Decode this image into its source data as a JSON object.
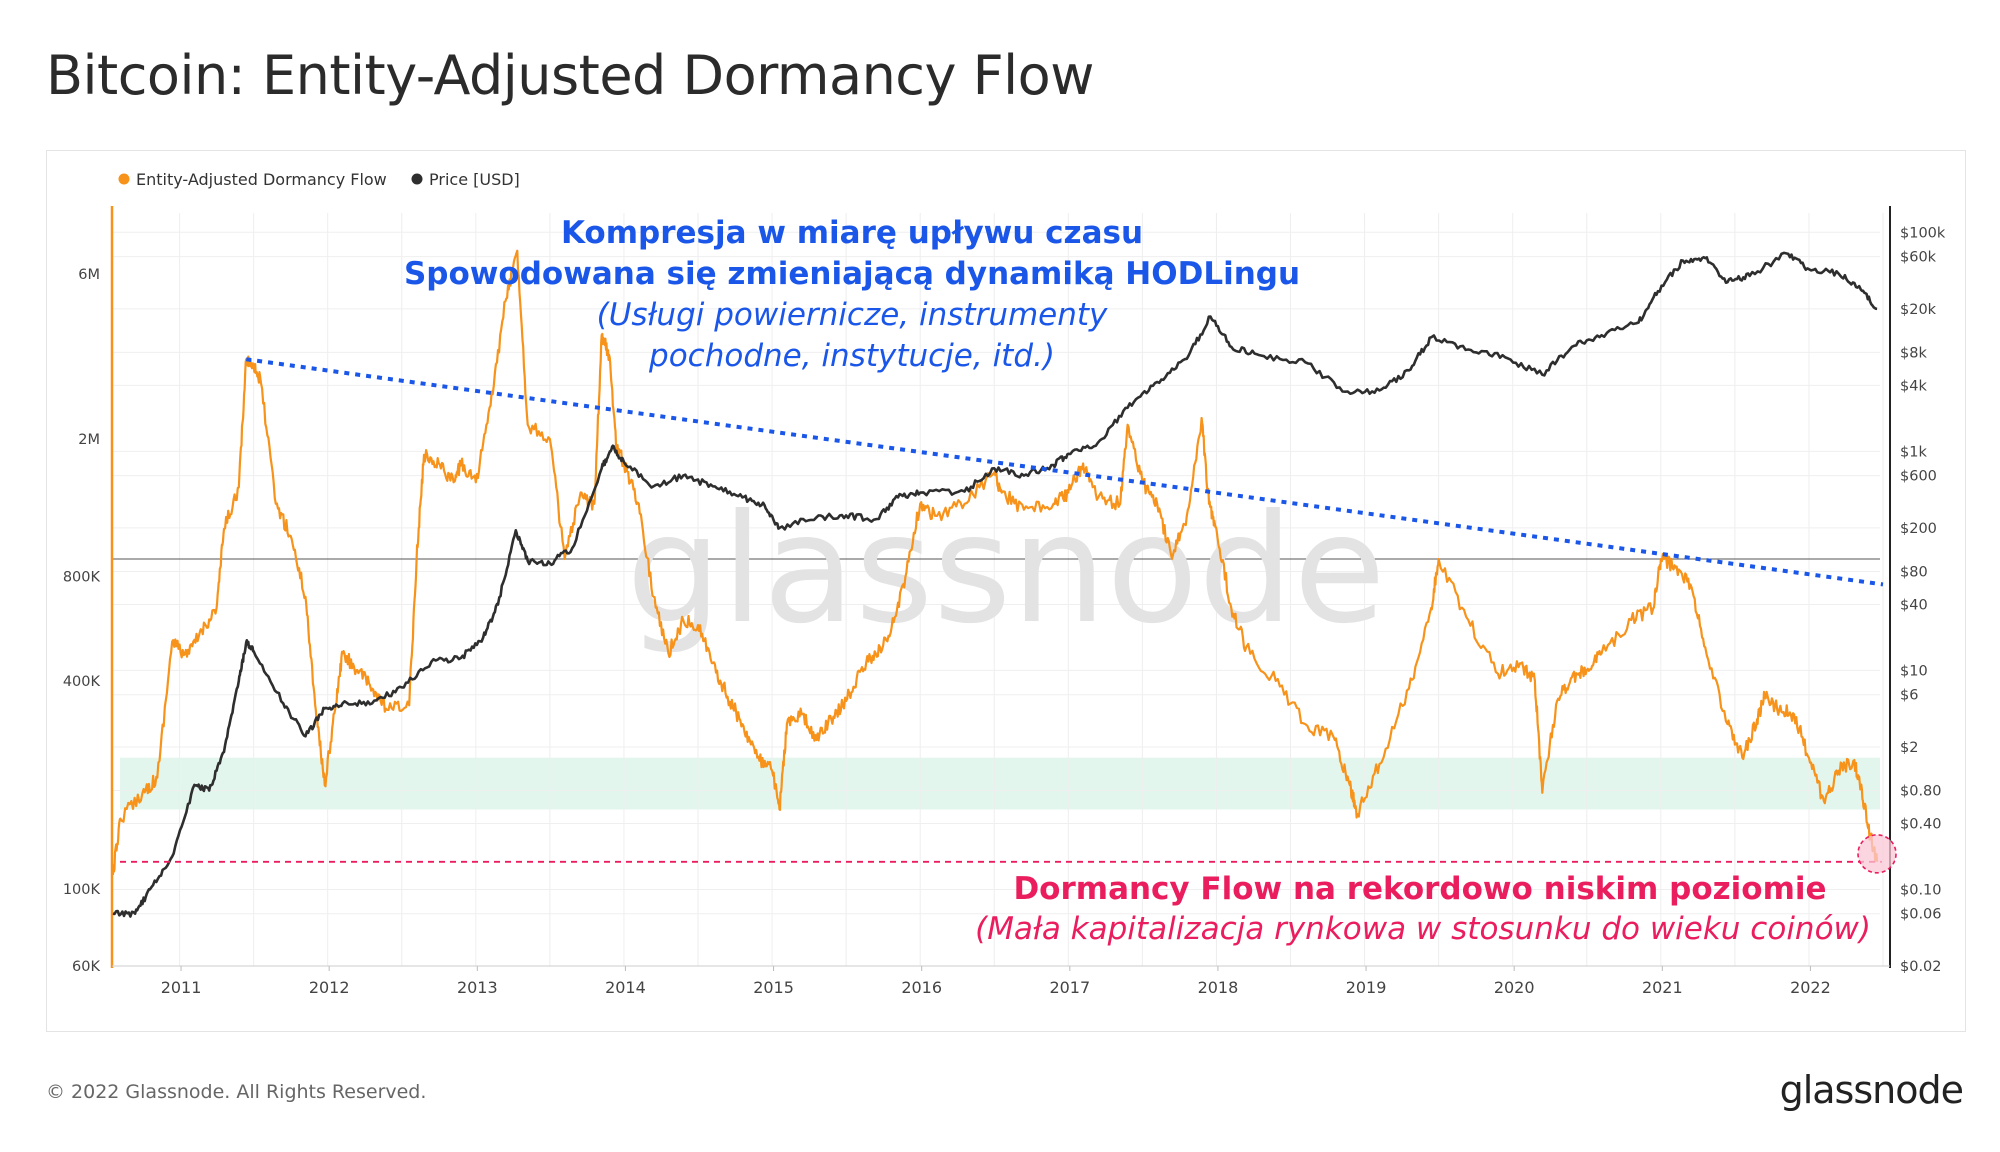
{
  "header": {
    "title": "Bitcoin: Entity-Adjusted Dormancy Flow"
  },
  "footer": {
    "copyright": "© 2022 Glassnode. All Rights Reserved.",
    "logo": "glassnode"
  },
  "watermark": "glassnode",
  "colors": {
    "flow": "#f7931a",
    "price": "#2e2e2e",
    "trend": "#1a56e8",
    "record_low": "#ea1d5e",
    "band": "#d9f3e8"
  },
  "chart_data": {
    "type": "line",
    "x_scale": "time",
    "y_scale_left": "log",
    "y_scale_right": "log",
    "x_ticks": [
      "2011",
      "2012",
      "2013",
      "2014",
      "2015",
      "2016",
      "2017",
      "2018",
      "2019",
      "2020",
      "2021",
      "2022"
    ],
    "xlim": [
      "2010-07-17",
      "2022-06-24"
    ],
    "left_axis": {
      "ticks": [
        {
          "value": 60000,
          "label": "60K"
        },
        {
          "value": 100000,
          "label": "100K"
        },
        {
          "value": 400000,
          "label": "400K"
        },
        {
          "value": 800000,
          "label": "800K"
        },
        {
          "value": 2000000,
          "label": "2M"
        },
        {
          "value": 6000000,
          "label": "6M"
        }
      ],
      "ylim": [
        60000,
        9000000
      ]
    },
    "right_axis": {
      "ticks": [
        {
          "value": 0.02,
          "label": "$0.02"
        },
        {
          "value": 0.06,
          "label": "$0.06"
        },
        {
          "value": 0.1,
          "label": "$0.10"
        },
        {
          "value": 0.4,
          "label": "$0.40"
        },
        {
          "value": 0.8,
          "label": "$0.80"
        },
        {
          "value": 2,
          "label": "$2"
        },
        {
          "value": 6,
          "label": "$6"
        },
        {
          "value": 10,
          "label": "$10"
        },
        {
          "value": 40,
          "label": "$40"
        },
        {
          "value": 80,
          "label": "$80"
        },
        {
          "value": 200,
          "label": "$200"
        },
        {
          "value": 600,
          "label": "$600"
        },
        {
          "value": 1000,
          "label": "$1k"
        },
        {
          "value": 4000,
          "label": "$4k"
        },
        {
          "value": 8000,
          "label": "$8k"
        },
        {
          "value": 20000,
          "label": "$20k"
        },
        {
          "value": 60000,
          "label": "$60k"
        },
        {
          "value": 100000,
          "label": "$100k"
        }
      ],
      "ylim": [
        0.02,
        150000
      ]
    },
    "legend": [
      {
        "name": "Entity-Adjusted Dormancy Flow",
        "color": "#f7931a"
      },
      {
        "name": "Price [USD]",
        "color": "#2e2e2e"
      }
    ],
    "legend_position": "top-left",
    "grid": true,
    "series": [
      {
        "name": "Entity-Adjusted Dormancy Flow",
        "axis": "left",
        "points": [
          [
            2010.55,
            110000
          ],
          [
            2010.6,
            160000
          ],
          [
            2010.75,
            190000
          ],
          [
            2010.85,
            210000
          ],
          [
            2010.95,
            520000
          ],
          [
            2011.05,
            470000
          ],
          [
            2011.15,
            560000
          ],
          [
            2011.25,
            650000
          ],
          [
            2011.3,
            1100000
          ],
          [
            2011.4,
            1450000
          ],
          [
            2011.45,
            3400000
          ],
          [
            2011.5,
            3300000
          ],
          [
            2011.55,
            2900000
          ],
          [
            2011.65,
            1300000
          ],
          [
            2011.75,
            1050000
          ],
          [
            2011.85,
            700000
          ],
          [
            2011.92,
            330000
          ],
          [
            2011.98,
            200000
          ],
          [
            2012.05,
            330000
          ],
          [
            2012.1,
            480000
          ],
          [
            2012.2,
            430000
          ],
          [
            2012.3,
            380000
          ],
          [
            2012.4,
            330000
          ],
          [
            2012.55,
            340000
          ],
          [
            2012.6,
            900000
          ],
          [
            2012.65,
            1800000
          ],
          [
            2012.75,
            1700000
          ],
          [
            2012.85,
            1500000
          ],
          [
            2012.9,
            1700000
          ],
          [
            2013.0,
            1500000
          ],
          [
            2013.1,
            2500000
          ],
          [
            2013.2,
            5000000
          ],
          [
            2013.28,
            7000000
          ],
          [
            2013.35,
            2200000
          ],
          [
            2013.5,
            2000000
          ],
          [
            2013.6,
            900000
          ],
          [
            2013.7,
            1350000
          ],
          [
            2013.8,
            1300000
          ],
          [
            2013.85,
            4000000
          ],
          [
            2013.9,
            3500000
          ],
          [
            2013.95,
            1900000
          ],
          [
            2014.0,
            1700000
          ],
          [
            2014.1,
            1300000
          ],
          [
            2014.2,
            700000
          ],
          [
            2014.3,
            480000
          ],
          [
            2014.4,
            600000
          ],
          [
            2014.5,
            580000
          ],
          [
            2014.6,
            450000
          ],
          [
            2014.7,
            360000
          ],
          [
            2014.8,
            300000
          ],
          [
            2014.9,
            240000
          ],
          [
            2015.0,
            220000
          ],
          [
            2015.05,
            170000
          ],
          [
            2015.1,
            300000
          ],
          [
            2015.2,
            320000
          ],
          [
            2015.3,
            270000
          ],
          [
            2015.4,
            310000
          ],
          [
            2015.5,
            350000
          ],
          [
            2015.6,
            430000
          ],
          [
            2015.7,
            480000
          ],
          [
            2015.8,
            550000
          ],
          [
            2015.9,
            800000
          ],
          [
            2016.0,
            1300000
          ],
          [
            2016.1,
            1200000
          ],
          [
            2016.3,
            1300000
          ],
          [
            2016.5,
            1600000
          ],
          [
            2016.55,
            1400000
          ],
          [
            2016.7,
            1250000
          ],
          [
            2016.9,
            1300000
          ],
          [
            2017.0,
            1400000
          ],
          [
            2017.1,
            1700000
          ],
          [
            2017.2,
            1350000
          ],
          [
            2017.35,
            1300000
          ],
          [
            2017.4,
            2200000
          ],
          [
            2017.5,
            1500000
          ],
          [
            2017.6,
            1300000
          ],
          [
            2017.7,
            900000
          ],
          [
            2017.8,
            1200000
          ],
          [
            2017.9,
            2300000
          ],
          [
            2017.95,
            1300000
          ],
          [
            2018.0,
            1100000
          ],
          [
            2018.1,
            650000
          ],
          [
            2018.2,
            500000
          ],
          [
            2018.4,
            400000
          ],
          [
            2018.6,
            300000
          ],
          [
            2018.8,
            270000
          ],
          [
            2018.9,
            200000
          ],
          [
            2018.95,
            165000
          ],
          [
            2019.1,
            230000
          ],
          [
            2019.3,
            380000
          ],
          [
            2019.45,
            650000
          ],
          [
            2019.5,
            900000
          ],
          [
            2019.7,
            600000
          ],
          [
            2019.9,
            420000
          ],
          [
            2020.05,
            450000
          ],
          [
            2020.15,
            400000
          ],
          [
            2020.2,
            190000
          ],
          [
            2020.3,
            350000
          ],
          [
            2020.4,
            410000
          ],
          [
            2020.5,
            430000
          ],
          [
            2020.6,
            480000
          ],
          [
            2020.8,
            600000
          ],
          [
            2020.95,
            650000
          ],
          [
            2021.0,
            900000
          ],
          [
            2021.1,
            850000
          ],
          [
            2021.2,
            760000
          ],
          [
            2021.3,
            500000
          ],
          [
            2021.45,
            300000
          ],
          [
            2021.55,
            240000
          ],
          [
            2021.65,
            310000
          ],
          [
            2021.7,
            360000
          ],
          [
            2021.8,
            330000
          ],
          [
            2021.9,
            320000
          ],
          [
            2022.0,
            240000
          ],
          [
            2022.1,
            180000
          ],
          [
            2022.2,
            220000
          ],
          [
            2022.3,
            235000
          ],
          [
            2022.35,
            200000
          ],
          [
            2022.4,
            150000
          ],
          [
            2022.46,
            120000
          ]
        ]
      },
      {
        "name": "Price [USD]",
        "axis": "right",
        "points": [
          [
            2010.55,
            0.06
          ],
          [
            2010.7,
            0.06
          ],
          [
            2010.8,
            0.1
          ],
          [
            2010.95,
            0.2
          ],
          [
            2011.1,
            0.9
          ],
          [
            2011.2,
            0.8
          ],
          [
            2011.3,
            1.8
          ],
          [
            2011.4,
            8
          ],
          [
            2011.45,
            18
          ],
          [
            2011.5,
            15
          ],
          [
            2011.7,
            5
          ],
          [
            2011.85,
            2.5
          ],
          [
            2011.98,
            4.5
          ],
          [
            2012.1,
            5
          ],
          [
            2012.3,
            5
          ],
          [
            2012.5,
            7
          ],
          [
            2012.7,
            12
          ],
          [
            2012.9,
            13
          ],
          [
            2013.05,
            20
          ],
          [
            2013.15,
            40
          ],
          [
            2013.27,
            190
          ],
          [
            2013.35,
            100
          ],
          [
            2013.5,
            95
          ],
          [
            2013.65,
            130
          ],
          [
            2013.85,
            700
          ],
          [
            2013.92,
            1100
          ],
          [
            2014.0,
            800
          ],
          [
            2014.2,
            480
          ],
          [
            2014.4,
            600
          ],
          [
            2014.6,
            480
          ],
          [
            2014.8,
            380
          ],
          [
            2014.95,
            320
          ],
          [
            2015.05,
            200
          ],
          [
            2015.3,
            250
          ],
          [
            2015.5,
            260
          ],
          [
            2015.7,
            240
          ],
          [
            2015.85,
            380
          ],
          [
            2016.0,
            420
          ],
          [
            2016.3,
            430
          ],
          [
            2016.5,
            700
          ],
          [
            2016.7,
            600
          ],
          [
            2016.9,
            750
          ],
          [
            2017.0,
            950
          ],
          [
            2017.2,
            1200
          ],
          [
            2017.4,
            2500
          ],
          [
            2017.6,
            4300
          ],
          [
            2017.8,
            7000
          ],
          [
            2017.96,
            17000
          ],
          [
            2018.1,
            9000
          ],
          [
            2018.3,
            7500
          ],
          [
            2018.6,
            6500
          ],
          [
            2018.87,
            3500
          ],
          [
            2019.1,
            3600
          ],
          [
            2019.3,
            5500
          ],
          [
            2019.45,
            11000
          ],
          [
            2019.7,
            8500
          ],
          [
            2019.95,
            7200
          ],
          [
            2020.2,
            5000
          ],
          [
            2020.4,
            9000
          ],
          [
            2020.6,
            11500
          ],
          [
            2020.85,
            15000
          ],
          [
            2020.98,
            29000
          ],
          [
            2021.15,
            55000
          ],
          [
            2021.3,
            58000
          ],
          [
            2021.45,
            35000
          ],
          [
            2021.6,
            40000
          ],
          [
            2021.85,
            64000
          ],
          [
            2022.0,
            46000
          ],
          [
            2022.2,
            42000
          ],
          [
            2022.35,
            30000
          ],
          [
            2022.46,
            20000
          ]
        ]
      }
    ],
    "annotations": {
      "trend_title_1": "Kompresja w miarę upływu czasu",
      "trend_title_2": "Spowodowana się zmieniającą dynamiką HODLingu",
      "trend_sub_1": "(Usługi powiernicze, instrumenty",
      "trend_sub_2": "pochodne, instytucje, itd.)",
      "low_title": "Dormancy Flow na rekordowo niskim poziomie",
      "low_sub": "(Mała kapitalizacja rynkowa w stosunku do wieku coinów)"
    },
    "trendline": {
      "from": [
        2011.45,
        3400000
      ],
      "to": [
        2022.5,
        760000
      ]
    },
    "record_low_line": {
      "y": 120000
    },
    "reference_line": {
      "y": 900000
    },
    "green_band": {
      "from": 170000,
      "to": 240000
    }
  }
}
